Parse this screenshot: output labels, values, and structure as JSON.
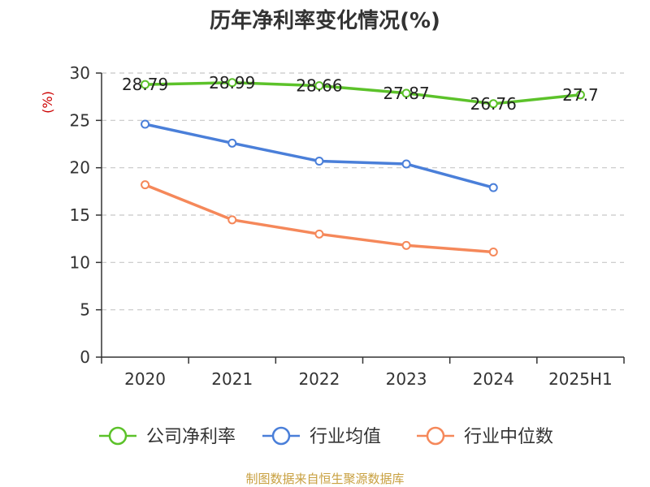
{
  "chart_data": {
    "type": "line",
    "title": "历年净利率变化情况(%)",
    "ylabel": "(%)",
    "categories": [
      "2020",
      "2021",
      "2022",
      "2023",
      "2024",
      "2025H1"
    ],
    "ylim": [
      0,
      30
    ],
    "yticks": [
      "0",
      "5",
      "10",
      "15",
      "20",
      "25",
      "30"
    ],
    "grid": true,
    "legend_position": "bottom",
    "series": [
      {
        "name": "公司净利率",
        "color": "#5cc22a",
        "values": [
          28.79,
          28.99,
          28.66,
          27.87,
          26.76,
          27.7
        ],
        "labels": [
          "28.79",
          "28.99",
          "28.66",
          "27.87",
          "26.76",
          "27.7"
        ]
      },
      {
        "name": "行业均值",
        "color": "#4a7fd9",
        "values": [
          24.6,
          22.6,
          20.7,
          20.4,
          17.9,
          null
        ]
      },
      {
        "name": "行业中位数",
        "color": "#f5885a",
        "values": [
          18.2,
          14.5,
          13.0,
          11.8,
          11.1,
          null
        ]
      }
    ]
  },
  "source_text": "制图数据来自恒生聚源数据库"
}
